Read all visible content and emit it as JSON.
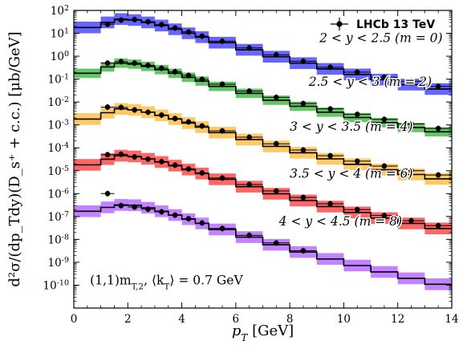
{
  "chart_data": {
    "type": "line",
    "title": "",
    "xlabel": "p_T [GeV]",
    "ylabel": "d²σ/(dp_Tdy)(D_s⁺ + c.c.) [μb/GeV]",
    "x_ticks": [
      "0",
      "2",
      "4",
      "6",
      "8",
      "10",
      "12",
      "14"
    ],
    "y_ticks": [
      "10",
      "10",
      "10",
      "10",
      "10",
      "10",
      "10",
      "10",
      "10",
      "10",
      "10",
      "10",
      "10"
    ],
    "y_tick_exponents": [
      "2",
      "1",
      "0",
      "-1",
      "-2",
      "-3",
      "-4",
      "-5",
      "-6",
      "-7",
      "-8",
      "-9",
      "-10"
    ],
    "xlim": [
      0,
      14
    ],
    "ylim": [
      1e-11,
      100
    ],
    "yscale": "log",
    "legend": {
      "label": "LHCb 13 TeV",
      "placement": "top-right"
    },
    "annotation": "(1,1)m_{T,2}, ⟨k_T⟩ = 0.7 GeV",
    "bin_edges": [
      0,
      1,
      1.5,
      2,
      2.5,
      3,
      3.5,
      4,
      4.5,
      5,
      6,
      7,
      8,
      9,
      10,
      11,
      12,
      13,
      14
    ],
    "series": [
      {
        "name": "2 < y < 2.5 (m = 0)",
        "color": "#0000ff",
        "theory": [
          18,
          30,
          42,
          38,
          30,
          22,
          15,
          10,
          6.8,
          3.9,
          1.9,
          0.95,
          0.5,
          0.28,
          0.16,
          0.095,
          0.058,
          0.037
        ],
        "band_up": 1.8,
        "band_down": 1.8,
        "data_x": [
          1.25,
          1.75,
          2.25,
          2.75,
          3.25,
          3.75,
          4.25,
          4.75,
          5.5,
          6.5,
          7.5,
          8.5,
          9.5,
          10.5,
          11.5,
          12.5,
          13.5
        ],
        "data_y": [
          25,
          38,
          40,
          32,
          24,
          17,
          11.5,
          7.5,
          4.5,
          2.3,
          1.15,
          0.6,
          0.33,
          0.2,
          0.12,
          0.08,
          0.048
        ]
      },
      {
        "name": "2.5 < y < 3 (m = 2)",
        "color": "#00a000",
        "theory": [
          0.18,
          0.34,
          0.5,
          0.45,
          0.36,
          0.26,
          0.18,
          0.12,
          0.082,
          0.048,
          0.024,
          0.012,
          0.0065,
          0.0036,
          0.0021,
          0.00125,
          0.00077,
          0.0005
        ],
        "band_up": 1.6,
        "band_down": 1.6,
        "data_x": [
          1.25,
          1.75,
          2.25,
          2.75,
          3.25,
          3.75,
          4.25,
          4.75,
          5.5,
          6.5,
          7.5,
          8.5,
          9.5,
          10.5,
          11.5,
          12.5,
          13.5
        ],
        "data_y": [
          0.5,
          0.58,
          0.5,
          0.4,
          0.3,
          0.21,
          0.145,
          0.098,
          0.06,
          0.03,
          0.016,
          0.0086,
          0.005,
          0.0029,
          0.00175,
          0.0011,
          0.0007
        ]
      },
      {
        "name": "3 < y < 3.5 (m = 4)",
        "color": "#ffa500",
        "theory": [
          0.0018,
          0.0034,
          0.005,
          0.0045,
          0.0036,
          0.0026,
          0.0018,
          0.0012,
          0.0008,
          0.00046,
          0.00023,
          0.000115,
          6.1e-05,
          3.3e-05,
          1.9e-05,
          1.1e-05,
          6.8e-06,
          4.4e-06
        ],
        "band_up": 1.8,
        "band_down": 1.8,
        "data_x": [
          1.25,
          1.75,
          2.25,
          2.75,
          3.25,
          3.75,
          4.25,
          4.75,
          5.5,
          6.5,
          7.5,
          8.5,
          9.5,
          10.5,
          11.5,
          12.5,
          13.5
        ],
        "data_y": [
          0.006,
          0.0058,
          0.0045,
          0.0036,
          0.0027,
          0.0019,
          0.00135,
          0.0009,
          0.00055,
          0.00029,
          0.00015,
          8e-05,
          4.5e-05,
          2.6e-05,
          1.6e-05,
          1e-05,
          6.5e-06
        ]
      },
      {
        "name": "3.5 < y < 4 (m = 6)",
        "color": "#ff0000",
        "theory": [
          1.8e-05,
          3.2e-05,
          4.5e-05,
          4.2e-05,
          3.3e-05,
          2.4e-05,
          1.65e-05,
          1.12e-05,
          7.5e-06,
          4.2e-06,
          2e-06,
          9.8e-07,
          5e-07,
          2.7e-07,
          1.5e-07,
          8.5e-08,
          5e-08,
          3e-08
        ],
        "band_up": 1.8,
        "band_down": 1.8,
        "data_x": [
          1.25,
          1.75,
          2.25,
          2.75,
          3.25,
          3.75,
          4.25,
          4.75,
          5.5,
          6.5,
          7.5,
          8.5,
          9.5,
          10.5,
          11.5,
          12.5,
          13.5
        ],
        "data_y": [
          5e-05,
          5.2e-05,
          4e-05,
          3.2e-05,
          2.5e-05,
          1.75e-05,
          1.2e-05,
          8e-06,
          4.8e-06,
          2.5e-06,
          1.3e-06,
          6.8e-07,
          3.6e-07,
          2e-07,
          1.1e-07,
          6.5e-08,
          4e-08
        ]
      },
      {
        "name": "4 < y < 4.5 (m = 8)",
        "color": "#9b30ff",
        "theory": [
          1.7e-07,
          2.5e-07,
          3.2e-07,
          3.1e-07,
          2.4e-07,
          1.7e-07,
          1.15e-07,
          7.6e-08,
          5e-08,
          2.7e-08,
          1.25e-08,
          5.8e-09,
          2.8e-09,
          1.4e-09,
          7.2e-10,
          3.8e-10,
          2e-10,
          1.1e-10
        ],
        "band_up": 1.8,
        "band_down": 1.8,
        "data_x": [
          1.25,
          1.75,
          2.25,
          2.75,
          3.25,
          3.75,
          4.25,
          4.75,
          5.5,
          6.5,
          7.5,
          8.5
        ],
        "data_y": [
          1e-06,
          3e-07,
          2.6e-07,
          2.1e-07,
          1.6e-07,
          1.15e-07,
          8e-08,
          5.2e-08,
          3e-08,
          1.5e-08,
          7e-09,
          3.2e-09
        ]
      }
    ],
    "series_label_x": [
      9.1,
      8.7,
      8.0,
      8.0,
      7.6
    ],
    "series_label_y": [
      4.2,
      0.05,
      0.00055,
      5e-06,
      4e-08
    ]
  }
}
